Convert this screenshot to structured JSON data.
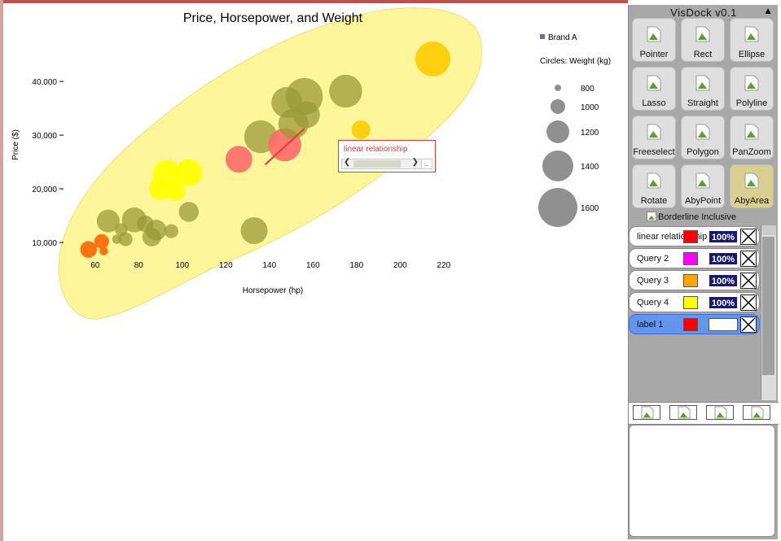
{
  "chart_data": {
    "type": "scatter",
    "title": "Price, Horsepower, and Weight",
    "xlabel": "Horsepower (hp)",
    "ylabel": "Price ($)",
    "xlim": [
      50,
      232
    ],
    "ylim": [
      5000,
      47000
    ],
    "x_ticks": [
      60,
      80,
      100,
      120,
      140,
      160,
      180,
      200,
      220
    ],
    "y_ticks": [
      10000,
      20000,
      30000,
      40000
    ],
    "y_tick_labels": [
      "10,000",
      "20,000",
      "30,000",
      "40,000"
    ],
    "size_legend_title": "Circles: Weight (kg)",
    "size_legend": [
      800,
      1000,
      1200,
      1400,
      1600
    ],
    "legend": {
      "series": "Brand A",
      "placement": "top-right"
    },
    "colors": {
      "olive": "#9a9a3a",
      "yellow": "#ffff00",
      "orange": "#ffa500",
      "dark_orange": "#ff6600",
      "pink": "#ff6b6b",
      "gold": "#ffcc00",
      "selection": "#fff59a",
      "legend_gray": "#909090"
    },
    "points": [
      {
        "hp": 57,
        "price": 8700,
        "weight": 1050,
        "color": "dark_orange"
      },
      {
        "hp": 63,
        "price": 10200,
        "weight": 1000,
        "color": "dark_orange"
      },
      {
        "hp": 64,
        "price": 8400,
        "weight": 850,
        "color": "dark_orange"
      },
      {
        "hp": 66,
        "price": 14000,
        "weight": 1200,
        "color": "olive"
      },
      {
        "hp": 70,
        "price": 10600,
        "weight": 870,
        "color": "olive"
      },
      {
        "hp": 72,
        "price": 12400,
        "weight": 950,
        "color": "olive"
      },
      {
        "hp": 74,
        "price": 10600,
        "weight": 980,
        "color": "olive"
      },
      {
        "hp": 78,
        "price": 14200,
        "weight": 1250,
        "color": "olive"
      },
      {
        "hp": 83,
        "price": 13500,
        "weight": 1050,
        "color": "olive"
      },
      {
        "hp": 86,
        "price": 11000,
        "weight": 1100,
        "color": "olive"
      },
      {
        "hp": 88,
        "price": 12300,
        "weight": 1150,
        "color": "olive"
      },
      {
        "hp": 90,
        "price": 20000,
        "weight": 1200,
        "color": "yellow"
      },
      {
        "hp": 93,
        "price": 22700,
        "weight": 1350,
        "color": "yellow"
      },
      {
        "hp": 95,
        "price": 12100,
        "weight": 980,
        "color": "olive"
      },
      {
        "hp": 97,
        "price": 19500,
        "weight": 1100,
        "color": "yellow"
      },
      {
        "hp": 103,
        "price": 23000,
        "weight": 1300,
        "color": "yellow"
      },
      {
        "hp": 103,
        "price": 15700,
        "weight": 1130,
        "color": "olive"
      },
      {
        "hp": 126,
        "price": 25500,
        "weight": 1300,
        "color": "pink"
      },
      {
        "hp": 133,
        "price": 12200,
        "weight": 1300,
        "color": "olive"
      },
      {
        "hp": 136,
        "price": 29700,
        "weight": 1450,
        "color": "olive"
      },
      {
        "hp": 147,
        "price": 28200,
        "weight": 1450,
        "color": "pink"
      },
      {
        "hp": 148,
        "price": 36100,
        "weight": 1400,
        "color": "olive"
      },
      {
        "hp": 151,
        "price": 32100,
        "weight": 1380,
        "color": "olive"
      },
      {
        "hp": 156,
        "price": 37200,
        "weight": 1550,
        "color": "olive"
      },
      {
        "hp": 157,
        "price": 33800,
        "weight": 1300,
        "color": "olive"
      },
      {
        "hp": 175,
        "price": 38200,
        "weight": 1450,
        "color": "olive"
      },
      {
        "hp": 182,
        "price": 31000,
        "weight": 1100,
        "color": "gold"
      },
      {
        "hp": 215,
        "price": 44200,
        "weight": 1500,
        "color": "gold"
      }
    ],
    "annotation": {
      "label": "linear relationship",
      "line_from": {
        "hp": 138,
        "price": 24500
      },
      "line_to": {
        "hp": 156,
        "price": 31200
      },
      "color": "#e53935"
    }
  },
  "panel": {
    "title": "VisDock v0.1",
    "collapse_glyph": "▲",
    "tools": [
      {
        "label": "Pointer",
        "icon": "pointer-icon",
        "active": false
      },
      {
        "label": "Rect",
        "icon": "rect-icon",
        "active": false
      },
      {
        "label": "Ellipse",
        "icon": "ellipse-icon",
        "active": false
      },
      {
        "label": "Lasso",
        "icon": "lasso-icon",
        "active": false
      },
      {
        "label": "Straight",
        "icon": "straight-icon",
        "active": false
      },
      {
        "label": "Polyline",
        "icon": "polyline-icon",
        "active": false
      },
      {
        "label": "Freeselect",
        "icon": "freeselect-icon",
        "active": false
      },
      {
        "label": "Polygon",
        "icon": "polygon-icon",
        "active": false
      },
      {
        "label": "PanZoom",
        "icon": "panzoom-icon",
        "active": false
      },
      {
        "label": "Rotate",
        "icon": "rotate-icon",
        "active": false
      },
      {
        "label": "AbyPoint",
        "icon": "abypoint-icon",
        "active": false
      },
      {
        "label": "AbyArea",
        "icon": "abyarea-icon",
        "active": true
      }
    ],
    "borderline_label": "Borderline Inclusive",
    "queries": [
      {
        "label": "linear relationship",
        "color": "#ff0000",
        "percent": "100%",
        "selected": false
      },
      {
        "label": "Query 2",
        "color": "#ff00ff",
        "percent": "100%",
        "selected": false
      },
      {
        "label": "Query 3",
        "color": "#ffa500",
        "percent": "100%",
        "selected": false
      },
      {
        "label": "Query 4",
        "color": "#ffff00",
        "percent": "100%",
        "selected": false
      },
      {
        "label": "label 1",
        "color": "#ff0000",
        "percent": "",
        "selected": true
      }
    ]
  }
}
